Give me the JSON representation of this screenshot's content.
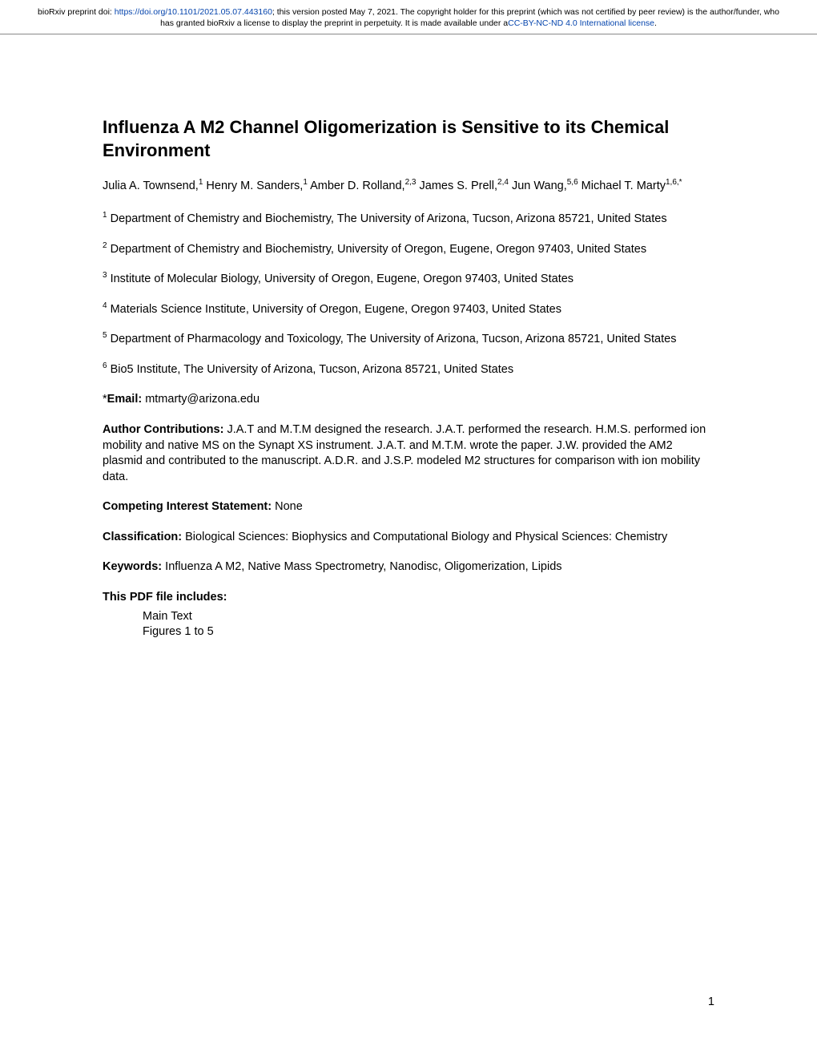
{
  "banner": {
    "prefix": "bioRxiv preprint doi: ",
    "doi_url": "https://doi.org/10.1101/2021.05.07.443160",
    "mid": "; this version posted May 7, 2021. The copyright holder for this preprint (which was not certified by peer review) is the author/funder, who has granted bioRxiv a license to display the preprint in perpetuity. It is made available under a",
    "license_text": "CC-BY-NC-ND 4.0 International license",
    "suffix": "."
  },
  "title": "Influenza A M2 Channel Oligomerization is Sensitive to its Chemical Environment",
  "authors": {
    "a1": {
      "name": "Julia A. Townsend,",
      "sup": "1"
    },
    "a2": {
      "name": " Henry M. Sanders,",
      "sup": "1"
    },
    "a3": {
      "name": " Amber D. Rolland,",
      "sup": "2,3"
    },
    "a4": {
      "name": " James S. Prell,",
      "sup": "2,4"
    },
    "a5": {
      "name": " Jun Wang,",
      "sup": "5,6"
    },
    "a6": {
      "name": " Michael T. Marty",
      "sup": "1,6,*"
    }
  },
  "affiliations": {
    "af1": {
      "sup": "1",
      "text": " Department of Chemistry and Biochemistry, The University of Arizona, Tucson, Arizona 85721, United States"
    },
    "af2": {
      "sup": "2",
      "text": " Department of Chemistry and Biochemistry, University of Oregon, Eugene, Oregon 97403, United States"
    },
    "af3": {
      "sup": "3",
      "text": " Institute of Molecular Biology, University of Oregon, Eugene, Oregon 97403, United States"
    },
    "af4": {
      "sup": "4",
      "text": " Materials Science Institute, University of Oregon, Eugene, Oregon 97403, United States"
    },
    "af5": {
      "sup": "5",
      "text": " Department of Pharmacology and Toxicology, The University of Arizona, Tucson, Arizona 85721, United States"
    },
    "af6": {
      "sup": "6",
      "text": " Bio5 Institute, The University of Arizona, Tucson, Arizona 85721, United States"
    }
  },
  "email": {
    "label": "*Email:  ",
    "value": "mtmarty@arizona.edu"
  },
  "contrib": {
    "label": "Author Contributions: ",
    "text": "J.A.T and M.T.M designed the research. J.A.T. performed the research. H.M.S. performed ion mobility and native MS on the Synapt XS instrument. J.A.T. and M.T.M. wrote the paper. J.W. provided the AM2 plasmid and contributed to the manuscript. A.D.R. and J.S.P. modeled M2 structures for comparison with ion mobility data."
  },
  "competing": {
    "label": "Competing Interest Statement: ",
    "text": "None"
  },
  "classification": {
    "label": "Classification: ",
    "text": "Biological Sciences: Biophysics and Computational Biology and Physical Sciences: Chemistry"
  },
  "keywords": {
    "label": "Keywords: ",
    "text": "Influenza A M2, Native Mass Spectrometry, Nanodisc, Oligomerization, Lipids"
  },
  "includes": {
    "label": "This PDF file includes:",
    "l1": "Main Text",
    "l2": "Figures 1 to 5"
  },
  "pagenum": "1"
}
